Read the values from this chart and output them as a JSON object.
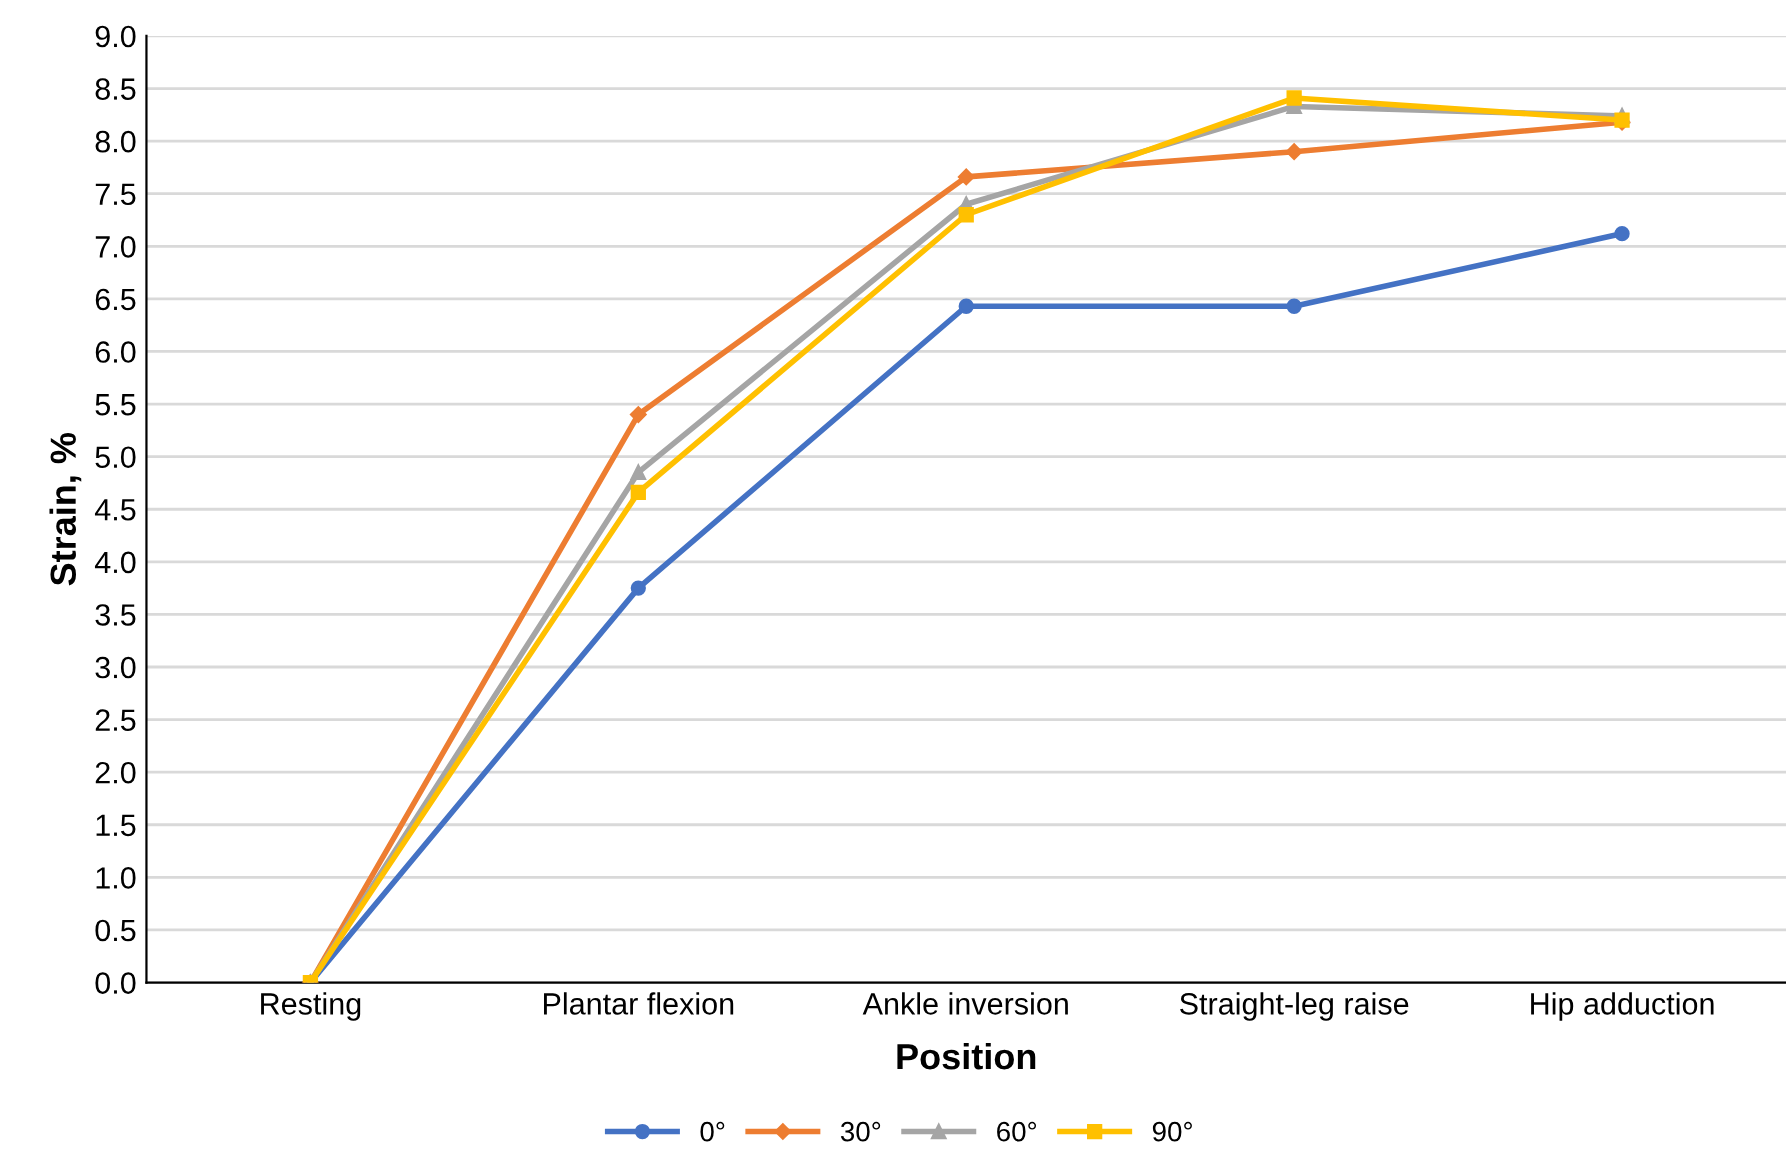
{
  "chart_data": {
    "type": "line",
    "xlabel": "Position",
    "ylabel": "Strain, %",
    "categories": [
      "Resting",
      "Plantar flexion",
      "Ankle inversion",
      "Straight-leg raise",
      "Hip adduction"
    ],
    "series": [
      {
        "name": "0°",
        "color": "#4472c4",
        "marker": "circle",
        "values": [
          0,
          3.75,
          6.43,
          6.43,
          7.12
        ]
      },
      {
        "name": "30°",
        "color": "#ed7d31",
        "marker": "diamond",
        "values": [
          0,
          5.4,
          7.66,
          7.9,
          8.18
        ]
      },
      {
        "name": "60°",
        "color": "#a5a5a5",
        "marker": "triangle",
        "values": [
          0,
          4.85,
          7.4,
          8.33,
          8.24
        ]
      },
      {
        "name": "90°",
        "color": "#ffc000",
        "marker": "square",
        "values": [
          0,
          4.66,
          7.3,
          8.41,
          8.2
        ]
      }
    ],
    "ylim": [
      0,
      9.0
    ],
    "yticks": [
      {
        "value": 0,
        "label": "0.0"
      },
      {
        "value": 0.5,
        "label": "0.5"
      },
      {
        "value": 1,
        "label": "1.0"
      },
      {
        "value": 1.5,
        "label": "1.5"
      },
      {
        "value": 2,
        "label": "2.0"
      },
      {
        "value": 2.5,
        "label": "2.5"
      },
      {
        "value": 3,
        "label": "3.0"
      },
      {
        "value": 3.5,
        "label": "3.5"
      },
      {
        "value": 4,
        "label": "4.0"
      },
      {
        "value": 4.5,
        "label": "4.5"
      },
      {
        "value": 5,
        "label": "5.0"
      },
      {
        "value": 5.5,
        "label": "5.5"
      },
      {
        "value": 6,
        "label": "6.0"
      },
      {
        "value": 6.5,
        "label": "6.5"
      },
      {
        "value": 7,
        "label": "7.0"
      },
      {
        "value": 7.5,
        "label": "7.5"
      },
      {
        "value": 8,
        "label": "8.0"
      },
      {
        "value": 8.5,
        "label": "8.5"
      },
      {
        "value": 9,
        "label": "9.0"
      }
    ],
    "grid": "y",
    "legend": "bottom",
    "line_style": "solid"
  }
}
